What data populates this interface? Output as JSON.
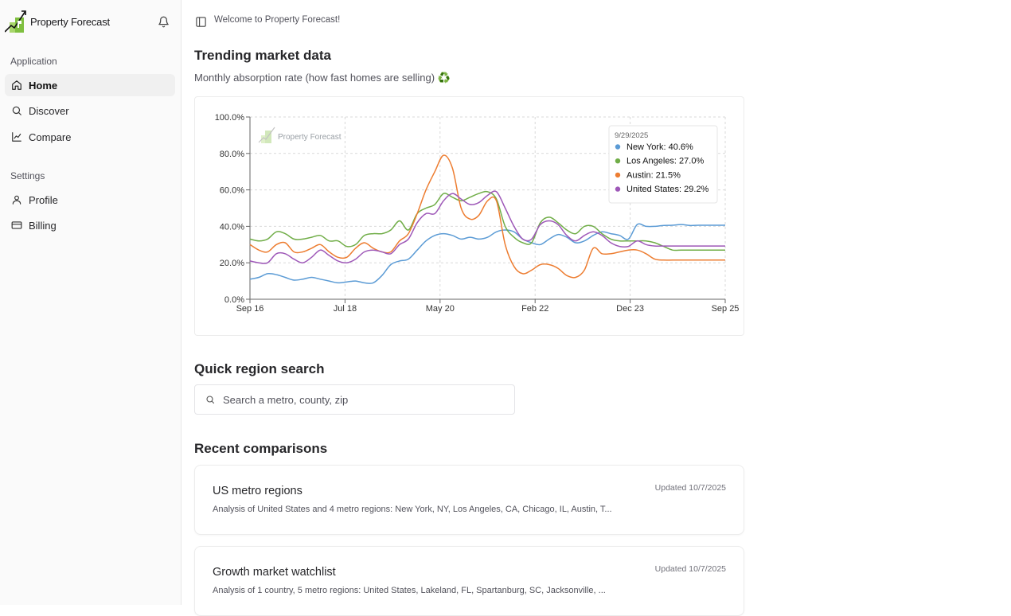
{
  "brand": {
    "name": "Property Forecast"
  },
  "sidebar": {
    "groups": [
      {
        "label": "Application",
        "items": [
          {
            "label": "Home",
            "icon": "home-icon",
            "active": true
          },
          {
            "label": "Discover",
            "icon": "search-icon"
          },
          {
            "label": "Compare",
            "icon": "line-chart-icon"
          }
        ]
      },
      {
        "label": "Settings",
        "items": [
          {
            "label": "Profile",
            "icon": "user-icon"
          },
          {
            "label": "Billing",
            "icon": "credit-card-icon"
          }
        ]
      }
    ]
  },
  "header": {
    "welcome": "Welcome to Property Forecast!"
  },
  "trending": {
    "title": "Trending market data",
    "subtitle": "Monthly absorption rate (how fast homes are selling) ♻️"
  },
  "chart_data": {
    "type": "line",
    "title": "",
    "xlabel": "",
    "ylabel": "",
    "ylim": [
      0,
      100
    ],
    "y_ticks": [
      "0.0%",
      "20.0%",
      "40.0%",
      "60.0%",
      "80.0%",
      "100.0%"
    ],
    "x_ticks": [
      "Sep 16",
      "Jul 18",
      "May 20",
      "Feb 22",
      "Dec 23",
      "Sep 25"
    ],
    "grid": true,
    "watermark": "Property Forecast",
    "x": [
      "2016-09",
      "2016-11",
      "2017-01",
      "2017-03",
      "2017-05",
      "2017-07",
      "2017-09",
      "2017-11",
      "2018-01",
      "2018-03",
      "2018-05",
      "2018-07",
      "2018-09",
      "2018-11",
      "2019-01",
      "2019-03",
      "2019-05",
      "2019-07",
      "2019-09",
      "2019-11",
      "2020-01",
      "2020-03",
      "2020-05",
      "2020-07",
      "2020-09",
      "2020-11",
      "2021-01",
      "2021-03",
      "2021-05",
      "2021-07",
      "2021-09",
      "2021-11",
      "2022-01",
      "2022-03",
      "2022-05",
      "2022-07",
      "2022-09",
      "2022-11",
      "2023-01",
      "2023-03",
      "2023-05",
      "2023-07",
      "2023-09",
      "2023-11",
      "2024-01",
      "2024-03",
      "2024-05",
      "2024-07",
      "2024-09",
      "2024-11",
      "2025-01",
      "2025-03",
      "2025-05",
      "2025-07",
      "2025-09"
    ],
    "series": [
      {
        "name": "New York",
        "color": "#5b9bd5",
        "values": [
          11,
          12,
          14,
          13.5,
          12,
          10.5,
          11,
          12,
          11,
          10,
          9,
          9.5,
          10,
          9,
          9,
          13,
          19,
          21,
          22,
          27,
          32,
          35,
          36,
          35,
          33,
          34,
          33,
          34,
          37,
          38,
          37,
          33,
          31,
          30,
          33,
          35.5,
          34,
          31,
          32,
          35,
          37,
          36,
          35,
          33,
          41,
          40,
          40,
          40.5,
          40.6,
          41,
          40.5,
          40.6,
          40.6,
          40.6,
          40.6
        ]
      },
      {
        "name": "Los Angeles",
        "color": "#70ad47",
        "values": [
          33,
          32,
          33,
          37,
          36,
          33,
          33,
          34,
          35,
          32,
          32,
          29,
          30,
          35,
          36,
          36,
          38,
          43,
          38,
          47,
          50,
          52,
          58,
          56,
          54,
          56,
          58,
          59,
          55,
          40,
          34,
          31,
          31,
          42,
          45,
          42,
          38,
          36,
          40,
          40,
          36,
          33,
          32,
          32,
          32,
          32,
          31,
          29,
          27,
          27,
          27,
          27,
          27,
          27,
          27
        ]
      },
      {
        "name": "Austin",
        "color": "#ed7d31",
        "values": [
          30,
          27,
          26,
          30,
          31,
          26,
          26,
          28,
          30,
          26,
          23,
          23,
          28,
          31,
          28,
          26,
          26,
          32,
          36,
          47,
          60,
          70,
          79,
          72,
          50,
          44,
          46,
          54,
          54,
          30,
          18,
          14,
          16,
          19,
          19,
          17,
          13,
          12,
          16,
          28,
          25,
          25,
          26,
          27,
          27,
          25,
          22,
          21.5,
          21.5,
          21.5,
          21.5,
          21.5,
          21.5,
          21.5,
          21.5
        ]
      },
      {
        "name": "United States",
        "color": "#9e58b8",
        "values": [
          21,
          20,
          20,
          25,
          25,
          22,
          20,
          23,
          27,
          24,
          21,
          20,
          22,
          26,
          27,
          26,
          25,
          30,
          33,
          42,
          47,
          47,
          54,
          58,
          55,
          52,
          53,
          57,
          59,
          50,
          40,
          33,
          33,
          41,
          43,
          41,
          35,
          32,
          35,
          37,
          35,
          31,
          29,
          29,
          32,
          30,
          29.2,
          29.2,
          29.2,
          29.2,
          29.2,
          29.2,
          29.2,
          29.2,
          29.2
        ]
      }
    ],
    "tooltip": {
      "date": "9/29/2025",
      "entries": [
        {
          "label": "New York: 40.6%",
          "color": "#5b9bd5"
        },
        {
          "label": "Los Angeles: 27.0%",
          "color": "#70ad47"
        },
        {
          "label": "Austin: 21.5%",
          "color": "#ed7d31"
        },
        {
          "label": "United States: 29.2%",
          "color": "#9e58b8"
        }
      ]
    }
  },
  "quick_search": {
    "title": "Quick region search",
    "placeholder": "Search a metro, county, zip"
  },
  "recent": {
    "title": "Recent comparisons",
    "items": [
      {
        "title": "US metro regions",
        "updated": "Updated 10/7/2025",
        "description": "Analysis of United States and 4 metro regions: New York, NY, Los Angeles, CA, Chicago, IL, Austin, T..."
      },
      {
        "title": "Growth market watchlist",
        "updated": "Updated 10/7/2025",
        "description": "Analysis of 1 country, 5 metro regions: United States, Lakeland, FL, Spartanburg, SC, Jacksonville, ..."
      }
    ]
  }
}
